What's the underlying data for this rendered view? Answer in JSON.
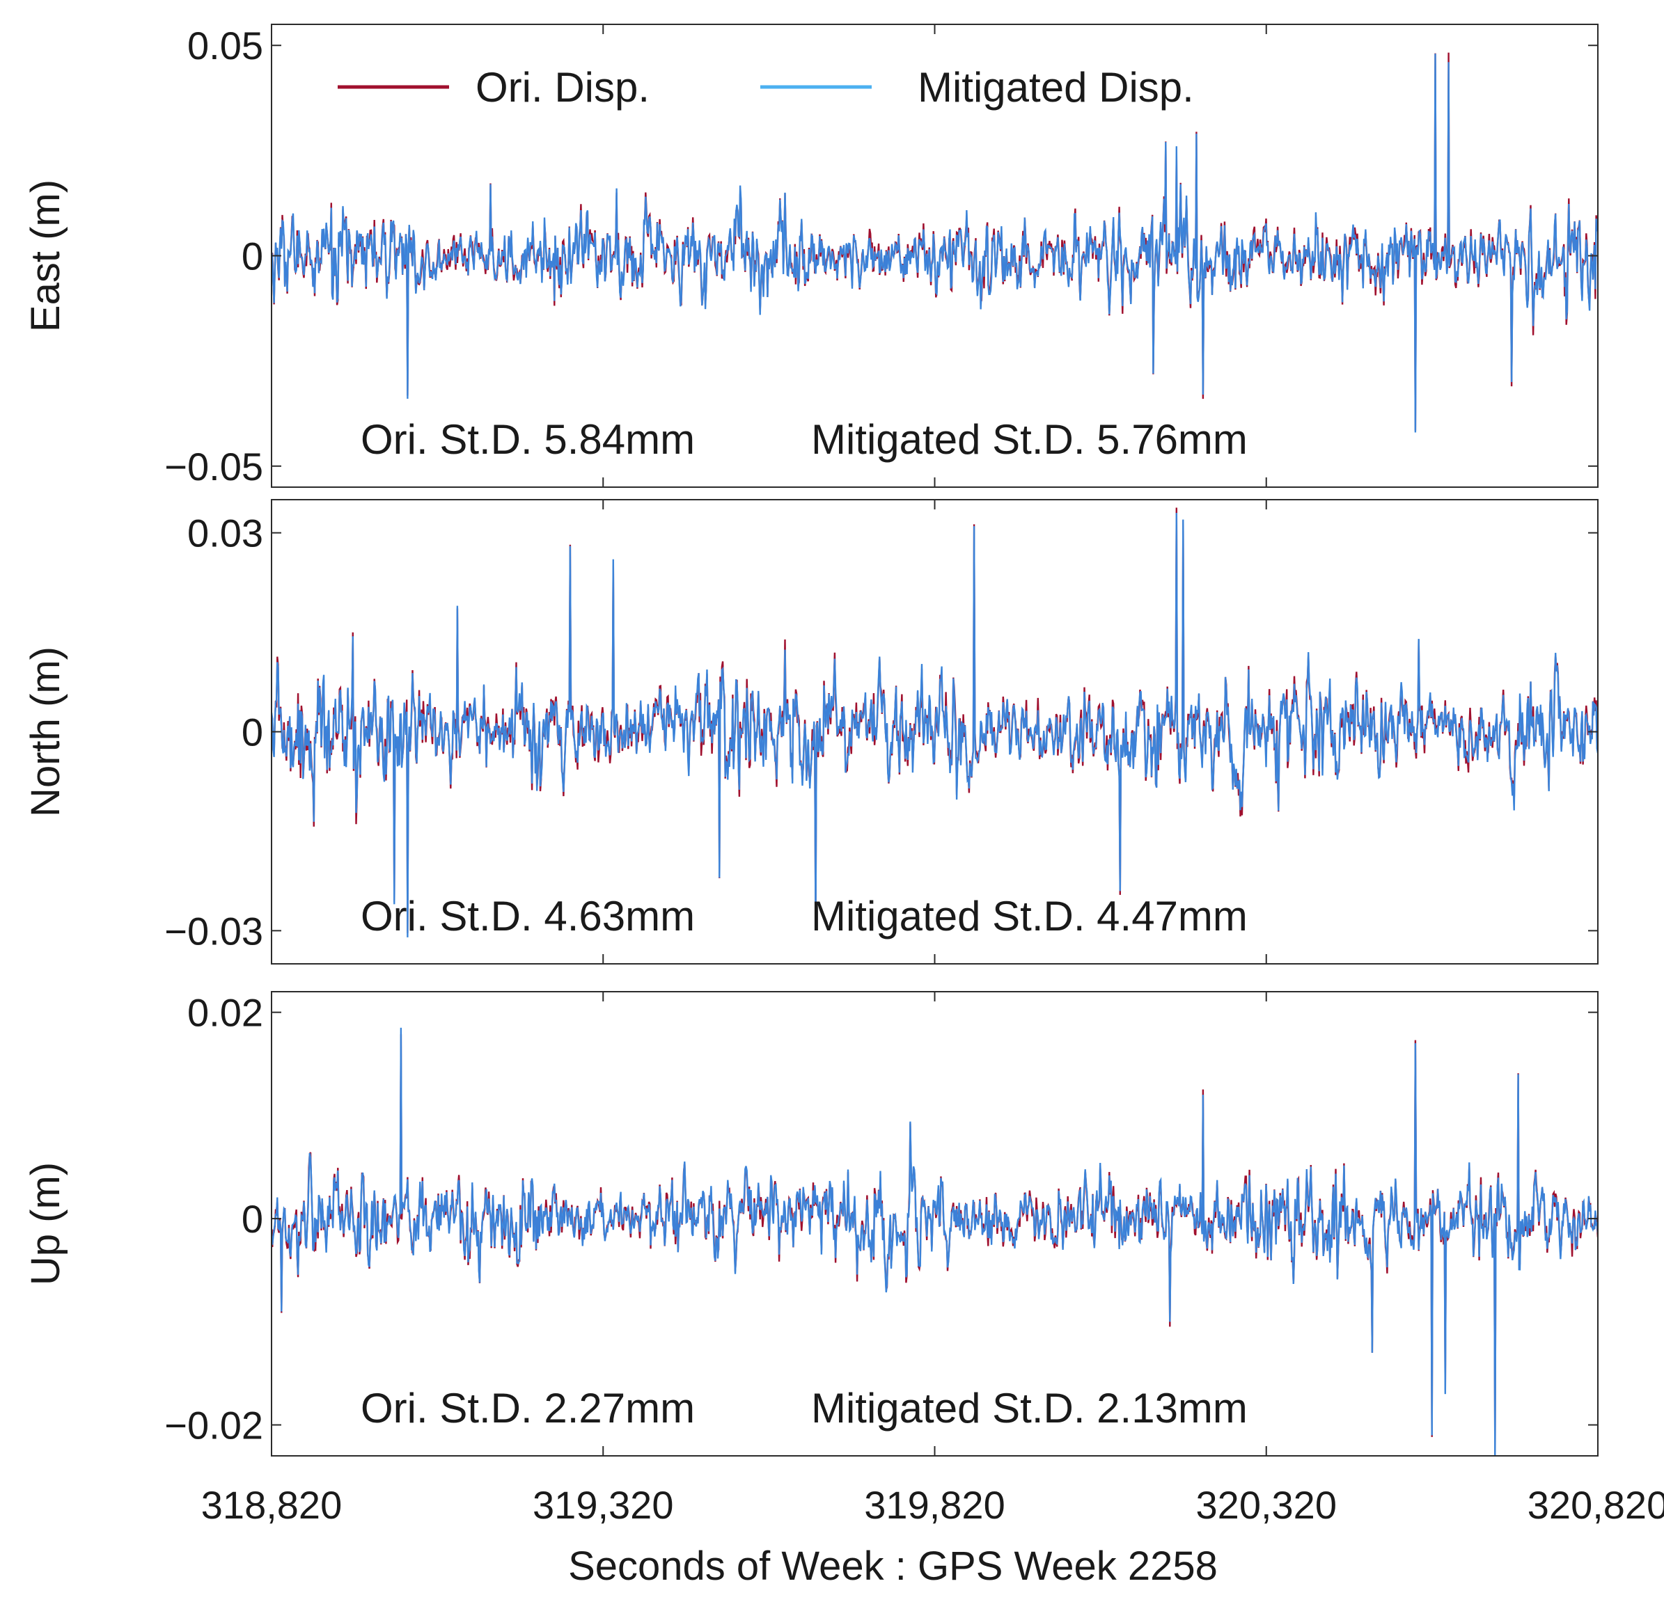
{
  "chart_data": {
    "type": "line",
    "xlabel": "Seconds of Week : GPS Week 2258",
    "xlim": [
      318820,
      320820
    ],
    "xticks": [
      318820,
      319320,
      319820,
      320320,
      320820
    ],
    "xtick_labels": [
      "318,820",
      "319,320",
      "319,820",
      "320,320",
      "320,820"
    ],
    "legend": {
      "position": "top-left",
      "entries": [
        {
          "name": "Ori. Disp.",
          "color": "#a0102e"
        },
        {
          "name": "Mitigated Disp.",
          "color": "#4cb0f0"
        }
      ]
    },
    "overlap_color": "#3a78d2",
    "panels": [
      {
        "id": "east",
        "ylabel": "East (m)",
        "ylim": [
          -0.055,
          0.055
        ],
        "yticks": [
          -0.05,
          0,
          0.05
        ],
        "ytick_labels": [
          "−0.05",
          "0",
          "0.05"
        ],
        "ori_annotation": "Ori. St.D. 5.84mm",
        "mit_annotation": "Mitigated St.D. 5.76mm",
        "noise_std": 0.0058,
        "spikes": [
          {
            "x": 319025,
            "y": -0.034
          },
          {
            "x": 319150,
            "y": 0.017
          },
          {
            "x": 319340,
            "y": 0.016
          },
          {
            "x": 320150,
            "y": -0.028
          },
          {
            "x": 320168,
            "y": 0.027
          },
          {
            "x": 320185,
            "y": 0.026
          },
          {
            "x": 320215,
            "y": 0.029
          },
          {
            "x": 320225,
            "y": -0.033
          },
          {
            "x": 320545,
            "y": -0.042
          },
          {
            "x": 320575,
            "y": 0.048
          },
          {
            "x": 320595,
            "y": 0.046
          },
          {
            "x": 320690,
            "y": -0.03
          }
        ],
        "series": [
          {
            "name": "Ori. Disp.",
            "std_mm": 5.84
          },
          {
            "name": "Mitigated Disp.",
            "std_mm": 5.76
          }
        ]
      },
      {
        "id": "north",
        "ylabel": "North (m)",
        "ylim": [
          -0.035,
          0.035
        ],
        "yticks": [
          -0.03,
          0,
          0.03
        ],
        "ytick_labels": [
          "−0.03",
          "0",
          "0.03"
        ],
        "ori_annotation": "Ori. St.D. 4.63mm",
        "mit_annotation": "Mitigated St.D. 4.47mm",
        "noise_std": 0.0046,
        "spikes": [
          {
            "x": 319005,
            "y": -0.026
          },
          {
            "x": 319025,
            "y": -0.031
          },
          {
            "x": 319100,
            "y": 0.019
          },
          {
            "x": 319270,
            "y": 0.028
          },
          {
            "x": 319335,
            "y": 0.026
          },
          {
            "x": 319495,
            "y": -0.022
          },
          {
            "x": 319640,
            "y": -0.029
          },
          {
            "x": 319880,
            "y": 0.031
          },
          {
            "x": 320100,
            "y": -0.024
          },
          {
            "x": 320185,
            "y": 0.033
          },
          {
            "x": 320195,
            "y": 0.032
          },
          {
            "x": 320550,
            "y": 0.014
          }
        ],
        "series": [
          {
            "name": "Ori. Disp.",
            "std_mm": 4.63
          },
          {
            "name": "Mitigated Disp.",
            "std_mm": 4.47
          }
        ]
      },
      {
        "id": "up",
        "ylabel": "Up (m)",
        "ylim": [
          -0.023,
          0.022
        ],
        "yticks": [
          -0.02,
          0,
          0.02
        ],
        "ytick_labels": [
          "−0.02",
          "0",
          "0.02"
        ],
        "ori_annotation": "Ori. St.D. 2.27mm",
        "mit_annotation": "Mitigated St.D. 2.13mm",
        "noise_std": 0.0024,
        "spikes": [
          {
            "x": 318835,
            "y": -0.009
          },
          {
            "x": 319015,
            "y": 0.0185
          },
          {
            "x": 320175,
            "y": -0.01
          },
          {
            "x": 320225,
            "y": 0.012
          },
          {
            "x": 320480,
            "y": -0.013
          },
          {
            "x": 320545,
            "y": 0.017
          },
          {
            "x": 320570,
            "y": -0.021
          },
          {
            "x": 320590,
            "y": -0.017
          },
          {
            "x": 320665,
            "y": -0.023
          },
          {
            "x": 320700,
            "y": 0.014
          }
        ],
        "series": [
          {
            "name": "Ori. Disp.",
            "std_mm": 2.27
          },
          {
            "name": "Mitigated Disp.",
            "std_mm": 2.13
          }
        ]
      }
    ]
  }
}
